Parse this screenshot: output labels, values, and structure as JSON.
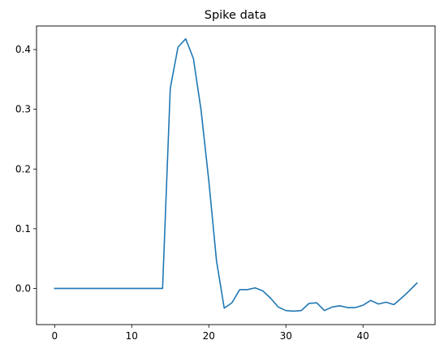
{
  "chart_data": {
    "type": "line",
    "title": "Spike data",
    "xlabel": "",
    "ylabel": "",
    "xlim": [
      -2.35,
      49.35
    ],
    "ylim": [
      -0.0605,
      0.4395
    ],
    "x_ticks": [
      0,
      10,
      20,
      30,
      40
    ],
    "y_ticks": [
      0.0,
      0.1,
      0.2,
      0.3,
      0.4
    ],
    "x_tick_labels": [
      "0",
      "10",
      "20",
      "30",
      "40"
    ],
    "y_tick_labels": [
      "0.0",
      "0.1",
      "0.2",
      "0.3",
      "0.4"
    ],
    "grid": false,
    "series": [
      {
        "color": "#1f77b4",
        "x": [
          0,
          1,
          2,
          3,
          4,
          5,
          6,
          7,
          8,
          9,
          10,
          11,
          12,
          13,
          14,
          15,
          16,
          17,
          18,
          19,
          20,
          21,
          22,
          23,
          24,
          25,
          26,
          27,
          28,
          29,
          30,
          31,
          32,
          33,
          34,
          35,
          36,
          37,
          38,
          39,
          40,
          41,
          42,
          43,
          44,
          45,
          46,
          47
        ],
        "y": [
          0,
          0,
          0,
          0,
          0,
          0,
          0,
          0,
          0,
          0,
          0,
          0,
          0,
          0,
          0,
          0.335,
          0.404,
          0.418,
          0.385,
          0.298,
          0.18,
          0.046,
          -0.033,
          -0.024,
          -0.002,
          -0.002,
          0.001,
          -0.004,
          -0.016,
          -0.031,
          -0.037,
          -0.038,
          -0.037,
          -0.025,
          -0.024,
          -0.037,
          -0.031,
          -0.029,
          -0.032,
          -0.032,
          -0.028,
          -0.02,
          -0.026,
          -0.023,
          -0.027,
          -0.016,
          -0.004,
          0.009
        ]
      }
    ]
  }
}
